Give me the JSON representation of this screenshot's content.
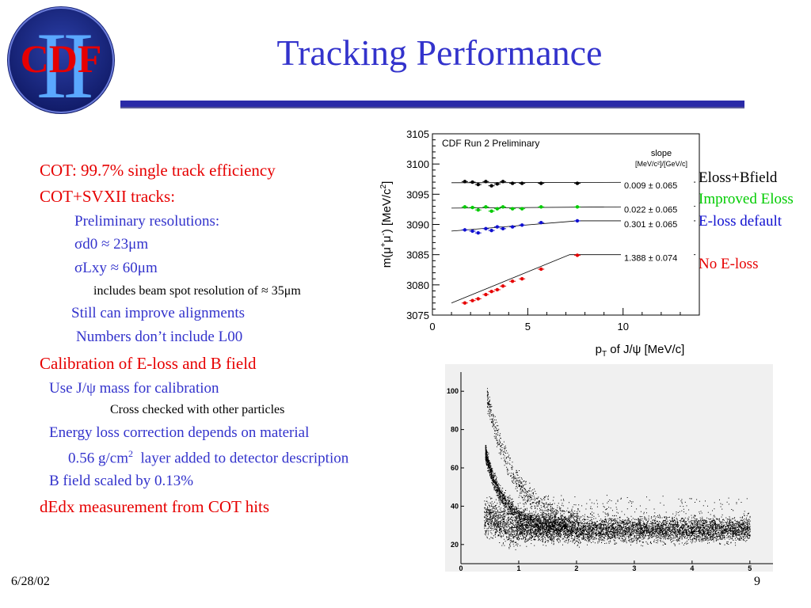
{
  "logo": {
    "text": "CDF",
    "numeral": "II"
  },
  "title": "Tracking Performance",
  "bullets": [
    {
      "text": "COT: 99.7% single track efficiency"
    },
    {
      "text": "COT+SVXII tracks:"
    },
    {
      "text": "Preliminary resolutions:"
    },
    {
      "text": "σd0 ≈ 23μm"
    },
    {
      "text": "σLxy ≈ 60μm"
    },
    {
      "text": "includes beam spot resolution of ≈ 35μm"
    },
    {
      "text": "Still can improve alignments"
    },
    {
      "text": "Numbers don’t include L00"
    },
    {
      "text": "Calibration of E-loss and B field"
    },
    {
      "text": "Use J/ψ mass for calibration"
    },
    {
      "text": "Cross checked with other particles"
    },
    {
      "text": "Energy loss correction depends on material"
    },
    {
      "text": "0.56 g/cm",
      "sup": "2",
      "after": "  layer added to detector description"
    },
    {
      "text": "B field scaled by 0.13%"
    },
    {
      "text": "dEdx measurement from COT hits"
    }
  ],
  "legend": [
    {
      "label": "Eloss+Bfield",
      "color": "#000000"
    },
    {
      "label": "Improved Eloss",
      "color": "#00cc00"
    },
    {
      "label": "E-loss default",
      "color": "#1010d0"
    },
    {
      "label": "No E-loss",
      "color": "#e60000"
    }
  ],
  "footer": {
    "date": "6/28/02",
    "page": "9"
  },
  "chart_data": [
    {
      "type": "scatter",
      "title": "CDF Run 2 Preliminary",
      "xlabel": "p_T of J/ψ [MeV/c]",
      "ylabel": "m(μ+μ-) [MeV/c^2]",
      "xlim": [
        0,
        14
      ],
      "ylim": [
        3075,
        3105
      ],
      "xticks": [
        0,
        5,
        10
      ],
      "yticks": [
        3075,
        3080,
        3085,
        3090,
        3095,
        3100,
        3105
      ],
      "slope_header": "slope",
      "slope_units": "[MeV/c²]/[GeV/c]",
      "series": [
        {
          "color": "#000000",
          "slope_label": "0.009  ±  0.065",
          "x": [
            1.7,
            2.1,
            2.4,
            2.8,
            3.1,
            3.4,
            3.7,
            4.2,
            4.7,
            5.7,
            7.6
          ],
          "y": [
            3097.1,
            3097.0,
            3096.6,
            3097.1,
            3096.4,
            3096.7,
            3097.1,
            3096.8,
            3096.8,
            3096.8,
            3096.8
          ],
          "fit": [
            [
              1,
              3096.9
            ],
            [
              13.8,
              3097.0
            ]
          ]
        },
        {
          "color": "#00cc00",
          "slope_label": "0.022  ±  0.065",
          "x": [
            1.7,
            2.1,
            2.4,
            2.8,
            3.1,
            3.4,
            3.7,
            4.2,
            4.7,
            5.7,
            7.6
          ],
          "y": [
            3092.9,
            3092.8,
            3092.4,
            3092.9,
            3092.2,
            3092.6,
            3092.9,
            3092.6,
            3092.6,
            3092.9,
            3092.9
          ],
          "fit": [
            [
              1,
              3092.7
            ],
            [
              13.8,
              3093.0
            ]
          ]
        },
        {
          "color": "#1010d0",
          "slope_label": "0.301  ±  0.065",
          "x": [
            1.7,
            2.1,
            2.4,
            2.8,
            3.1,
            3.4,
            3.7,
            4.2,
            4.7,
            5.7,
            7.6
          ],
          "y": [
            3089.1,
            3088.9,
            3088.6,
            3089.3,
            3089.0,
            3089.6,
            3089.3,
            3089.6,
            3089.9,
            3090.3,
            3090.6
          ],
          "fit": [
            [
              1,
              3088.9
            ],
            [
              7.6,
              3090.6
            ],
            [
              13.8,
              3090.6
            ]
          ]
        },
        {
          "color": "#e60000",
          "slope_label": "1.388  ±  0.074",
          "x": [
            1.7,
            2.1,
            2.4,
            2.8,
            3.1,
            3.4,
            3.7,
            4.2,
            4.7,
            5.7,
            7.6
          ],
          "y": [
            3077.0,
            3077.4,
            3077.7,
            3078.4,
            3078.9,
            3079.2,
            3079.8,
            3080.6,
            3081.0,
            3082.6,
            3084.9
          ],
          "fit": [
            [
              1,
              3077.0
            ],
            [
              7.2,
              3085.0
            ],
            [
              13.8,
              3085.0
            ]
          ]
        }
      ]
    },
    {
      "type": "scatter",
      "xlim": [
        0,
        5.4
      ],
      "ylim": [
        10,
        110
      ],
      "xticks": [
        0,
        1,
        2,
        3,
        4,
        5
      ],
      "yticks": [
        20,
        40,
        60,
        80,
        100
      ],
      "bands": [
        {
          "name": "main band",
          "x_start": 0.4,
          "x_end": 5.0,
          "y_center": 28
        },
        {
          "name": "lower band",
          "x_peak": 0.42,
          "y_peak": 68
        },
        {
          "name": "upper band",
          "x_peak": 0.45,
          "y_peak": 98
        }
      ]
    }
  ]
}
